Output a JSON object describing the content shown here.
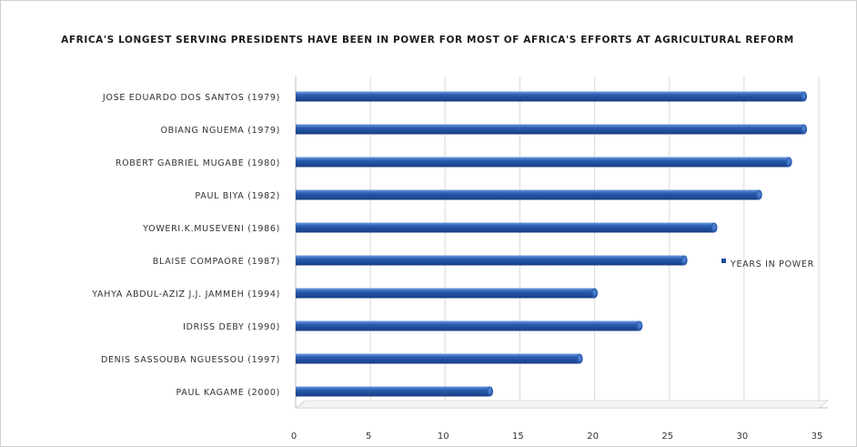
{
  "chart_data": {
    "type": "bar",
    "orientation": "horizontal",
    "title": "Africa's longest serving presidents have been in power for most of Africa's efforts at agricultural reform",
    "categories": [
      "Jose Eduardo dos Santos (1979)",
      "Obiang Nguema (1979)",
      "Robert Gabriel Mugabe (1980)",
      "Paul Biya (1982)",
      "Yoweri.K.Museveni (1986)",
      "Blaise Compaore (1987)",
      "Yahya Abdul-Aziz J.J. Jammeh (1994)",
      "Idriss Deby (1990)",
      "Denis Sassouba Nguessou (1997)",
      "Paul Kagame (2000)"
    ],
    "series": [
      {
        "name": "Years in Power",
        "values": [
          34,
          34,
          33,
          31,
          28,
          26,
          20,
          23,
          19,
          13
        ]
      }
    ],
    "x_ticks": [
      "0",
      "5",
      "10",
      "15",
      "20",
      "25",
      "30",
      "35"
    ],
    "xlim": [
      0,
      35
    ],
    "grid": "vertical",
    "legend_position": "right",
    "colors": {
      "bar": "#1f4e9c",
      "bar_highlight": "#4a7cc9",
      "grid": "#d9d9d9"
    }
  }
}
